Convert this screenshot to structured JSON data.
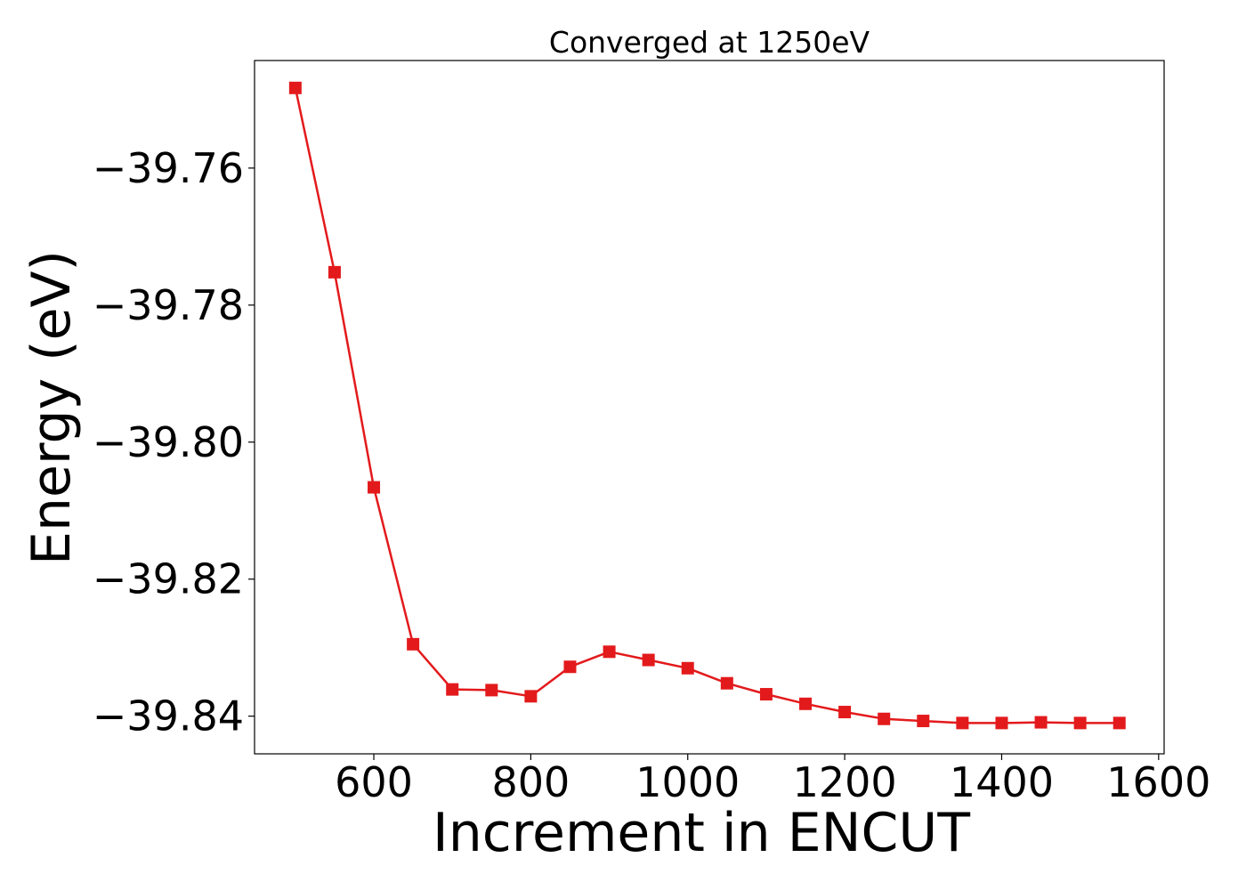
{
  "chart_data": {
    "type": "line",
    "title": "Converged at 1250eV",
    "xlabel": "Increment in ENCUT",
    "ylabel": "Energy (eV)",
    "xlim": [
      448,
      1607
    ],
    "ylim": [
      -39.8455,
      -39.7443
    ],
    "x_ticks": [
      600,
      800,
      1000,
      1200,
      1400,
      1600
    ],
    "x_tick_labels": [
      "600",
      "800",
      "1000",
      "1200",
      "1400",
      "1600"
    ],
    "y_ticks": [
      -39.76,
      -39.78,
      -39.8,
      -39.82,
      -39.84
    ],
    "y_tick_labels": [
      "−39.76",
      "−39.78",
      "−39.80",
      "−39.82",
      "−39.84"
    ],
    "grid": false,
    "series": [
      {
        "color": "#e31a1c",
        "marker": "square",
        "x": [
          500,
          550,
          600,
          650,
          700,
          750,
          800,
          850,
          900,
          950,
          1000,
          1050,
          1100,
          1150,
          1200,
          1250,
          1300,
          1350,
          1400,
          1450,
          1500,
          1550
        ],
        "values": [
          -39.7483,
          -39.7752,
          -39.8066,
          -39.8295,
          -39.8361,
          -39.8362,
          -39.8371,
          -39.8328,
          -39.8306,
          -39.8318,
          -39.833,
          -39.8352,
          -39.8368,
          -39.8382,
          -39.8394,
          -39.8404,
          -39.8407,
          -39.841,
          -39.841,
          -39.8409,
          -39.841,
          -39.841
        ]
      }
    ]
  }
}
